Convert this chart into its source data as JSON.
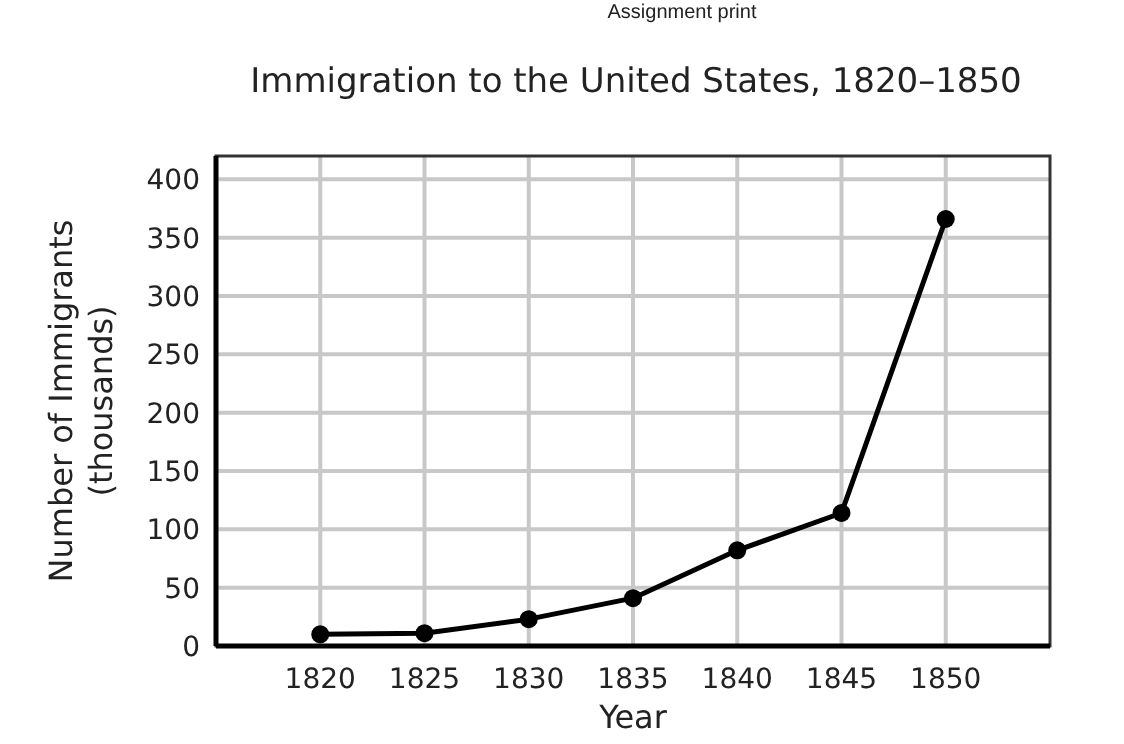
{
  "chart_data": {
    "type": "line",
    "title": "Immigration to the United States, 1820–1850",
    "xlabel": "Year",
    "ylabel": "Number of Immigrants (thousands)",
    "annotations": [
      "Assignment print"
    ],
    "x": [
      1820,
      1825,
      1830,
      1835,
      1840,
      1845,
      1850
    ],
    "series": [
      {
        "color": "#000000",
        "values": [
          10,
          11,
          23,
          41,
          82,
          114,
          366
        ]
      }
    ],
    "xlim": [
      1815,
      1855
    ],
    "xticks": [
      1820,
      1825,
      1830,
      1835,
      1840,
      1845,
      1850
    ],
    "ylim": [
      0,
      420
    ],
    "yticks": [
      0,
      50,
      100,
      150,
      200,
      250,
      300,
      350,
      400
    ],
    "grid": true,
    "marker": "circle",
    "line_style": "solid"
  }
}
